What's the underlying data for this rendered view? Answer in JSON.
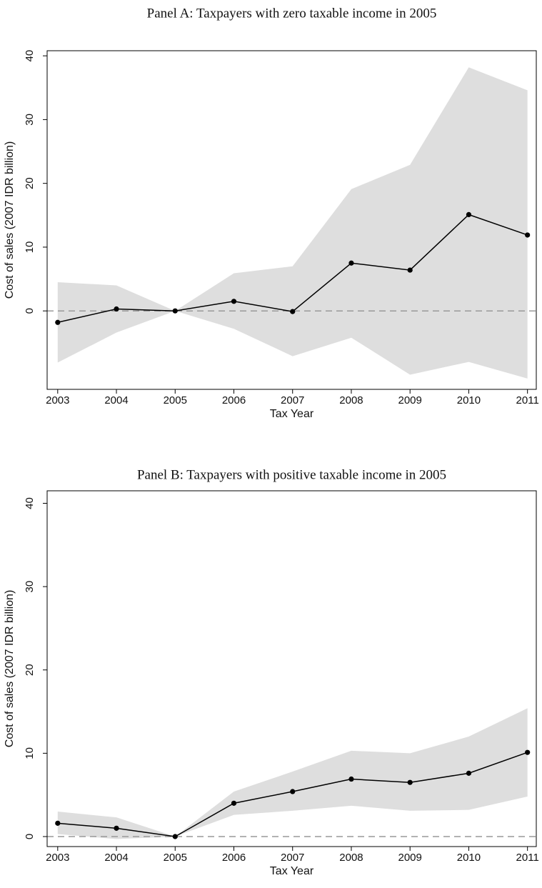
{
  "chart_data": [
    {
      "type": "line",
      "title": "Panel A: Taxpayers with zero taxable income in 2005",
      "xlabel": "Tax Year",
      "ylabel": "Cost of sales (2007 IDR billion)",
      "x": [
        2003,
        2004,
        2005,
        2006,
        2007,
        2008,
        2009,
        2010,
        2011
      ],
      "xlim": [
        2002.82,
        2011.15
      ],
      "xticks": [
        2003,
        2004,
        2005,
        2006,
        2007,
        2008,
        2009,
        2010,
        2011
      ],
      "ylim": [
        -12.3,
        40.8
      ],
      "yticks": [
        0,
        10,
        20,
        30,
        40
      ],
      "reference_line": 0,
      "series": [
        {
          "color": "#000000",
          "values": [
            -1.8,
            0.3,
            0,
            1.5,
            -0.1,
            7.5,
            6.4,
            15.1,
            11.9
          ]
        }
      ],
      "band": {
        "color": "#dedede",
        "upper": [
          4.5,
          4.0,
          0,
          5.9,
          7.0,
          19.1,
          22.9,
          38.2,
          34.6
        ],
        "lower": [
          -8.1,
          -3.4,
          0,
          -2.8,
          -7.1,
          -4.2,
          -10.0,
          -8.0,
          -10.6
        ]
      }
    },
    {
      "type": "line",
      "title": "Panel B: Taxpayers with positive taxable income in 2005",
      "xlabel": "Tax Year",
      "ylabel": "Cost of sales (2007 IDR billion)",
      "x": [
        2003,
        2004,
        2005,
        2006,
        2007,
        2008,
        2009,
        2010,
        2011
      ],
      "xlim": [
        2002.82,
        2011.15
      ],
      "xticks": [
        2003,
        2004,
        2005,
        2006,
        2007,
        2008,
        2009,
        2010,
        2011
      ],
      "ylim": [
        -1.2,
        41.5
      ],
      "yticks": [
        0,
        10,
        20,
        30,
        40
      ],
      "reference_line": 0,
      "series": [
        {
          "color": "#000000",
          "values": [
            1.6,
            1.0,
            0,
            4.0,
            5.4,
            6.9,
            6.5,
            7.6,
            10.1
          ]
        }
      ],
      "band": {
        "color": "#dedede",
        "upper": [
          3.0,
          2.3,
          0,
          5.4,
          7.8,
          10.3,
          10.0,
          12.0,
          15.4
        ],
        "lower": [
          0.3,
          -0.3,
          0,
          2.6,
          3.1,
          3.7,
          3.1,
          3.2,
          4.8
        ]
      }
    }
  ]
}
